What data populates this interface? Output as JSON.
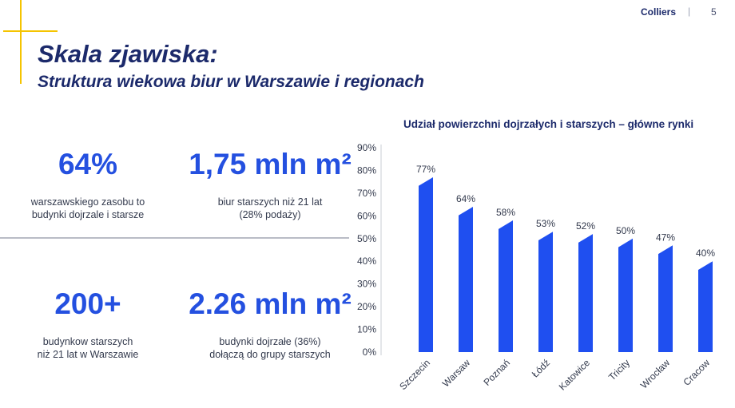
{
  "header": {
    "brand": "Colliers",
    "separator": "|",
    "page": "5"
  },
  "title": "Skala zjawiska:",
  "subtitle": "Struktura wiekowa biur w Warszawie i regionach",
  "stats": [
    {
      "value": "64%",
      "desc": "warszawskiego zasobu to\nbudynki dojrzale i starsze"
    },
    {
      "value": "1,75 mln m²",
      "desc": "biur starszych niż 21 lat\n(28% podaży)"
    },
    {
      "value": "200+",
      "desc": "budynkow starszych\nniż 21 lat w Warszawie"
    },
    {
      "value": "2.26 mln m²",
      "desc": "budynki dojrzałe (36%)\ndołączą do grupy starszych"
    }
  ],
  "colors": {
    "bar": "#1f4ff0",
    "accent": "#f5c400",
    "navy": "#1c2a6b",
    "stat": "#2450e0"
  },
  "chart_data": {
    "type": "bar",
    "title": "Udział powierzchni dojrzałych i starszych – główne rynki",
    "categories": [
      "Szczecin",
      "Warsaw",
      "Poznań",
      "Łódź",
      "Katowice",
      "Tricity",
      "Wrocław",
      "Cracow"
    ],
    "values": [
      77,
      64,
      58,
      53,
      52,
      50,
      47,
      40
    ],
    "data_labels": [
      "77%",
      "64%",
      "58%",
      "53%",
      "52%",
      "50%",
      "47%",
      "40%"
    ],
    "yticks": [
      "0%",
      "10%",
      "20%",
      "30%",
      "40%",
      "50%",
      "60%",
      "70%",
      "80%",
      "90%"
    ],
    "ylim": [
      0,
      90
    ],
    "grid": false,
    "legend": "none"
  }
}
